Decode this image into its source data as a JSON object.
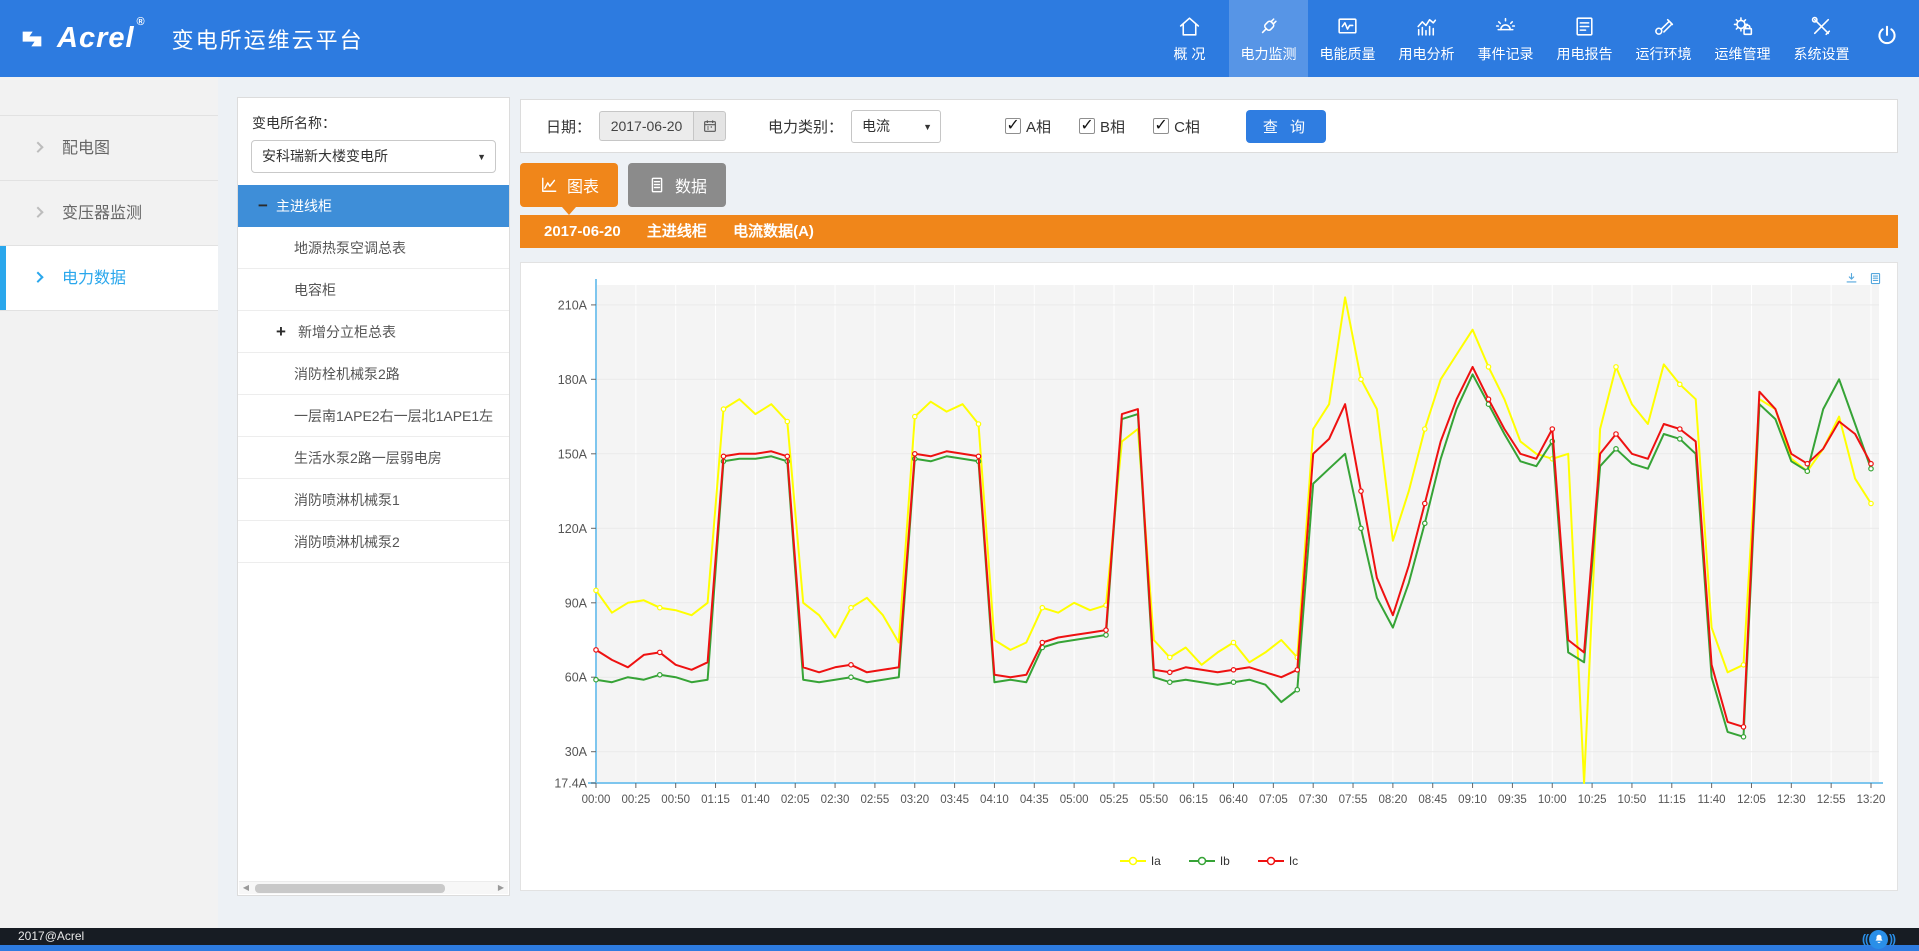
{
  "header": {
    "brand": "Acrel",
    "brand_reg": "®",
    "title": "变电所运维云平台",
    "nav": [
      {
        "label": "概 况",
        "icon": "home-icon",
        "active": false
      },
      {
        "label": "电力监测",
        "icon": "plug-icon",
        "active": true
      },
      {
        "label": "电能质量",
        "icon": "pulse-monitor-icon",
        "active": false
      },
      {
        "label": "用电分析",
        "icon": "trend-bars-icon",
        "active": false
      },
      {
        "label": "事件记录",
        "icon": "siren-icon",
        "active": false
      },
      {
        "label": "用电报告",
        "icon": "report-icon",
        "active": false
      },
      {
        "label": "运行环境",
        "icon": "telescope-icon",
        "active": false
      },
      {
        "label": "运维管理",
        "icon": "gear-lock-icon",
        "active": false
      },
      {
        "label": "系统设置",
        "icon": "tools-icon",
        "active": false
      }
    ]
  },
  "sidebar": {
    "items": [
      {
        "label": "配电图",
        "active": false
      },
      {
        "label": "变压器监测",
        "active": false
      },
      {
        "label": "电力数据",
        "active": true
      }
    ]
  },
  "tree": {
    "station_label": "变电所名称：",
    "station_value": "安科瑞新大楼变电所",
    "nodes": [
      {
        "label": "主进线柜",
        "toggle": "minus",
        "selected": true
      },
      {
        "label": "地源热泵空调总表",
        "toggle": "none",
        "selected": false
      },
      {
        "label": "电容柜",
        "toggle": "none",
        "selected": false
      },
      {
        "label": "新增分立柜总表",
        "toggle": "plus",
        "selected": false
      },
      {
        "label": "消防栓机械泵2路",
        "toggle": "none",
        "selected": false
      },
      {
        "label": "一层南1APE2右一层北1APE1左",
        "toggle": "none",
        "selected": false
      },
      {
        "label": "生活水泵2路一层弱电房",
        "toggle": "none",
        "selected": false
      },
      {
        "label": "消防喷淋机械泵1",
        "toggle": "none",
        "selected": false
      },
      {
        "label": "消防喷淋机械泵2",
        "toggle": "none",
        "selected": false
      }
    ]
  },
  "toolbar": {
    "date_label": "日期：",
    "date_value": "2017-06-20",
    "type_label": "电力类别：",
    "type_value": "电流",
    "phases": [
      {
        "label": "A相",
        "checked": true
      },
      {
        "label": "B相",
        "checked": true
      },
      {
        "label": "C相",
        "checked": true
      }
    ],
    "query_label": "查 询"
  },
  "tabs": [
    {
      "label": "图表",
      "icon": "chart-icon",
      "active": true
    },
    {
      "label": "数据",
      "icon": "data-icon",
      "active": false
    }
  ],
  "banner": {
    "date": "2017-06-20",
    "device": "主进线柜",
    "metric": "电流数据(A)"
  },
  "chart_data": {
    "type": "line",
    "title": "2017-06-20 主进线柜 电流数据(A)",
    "unit": "A",
    "x_start": "00:00",
    "x_step_min": 10,
    "xticks": [
      "00:00",
      "00:25",
      "00:50",
      "01:15",
      "01:40",
      "02:05",
      "02:30",
      "02:55",
      "03:20",
      "03:45",
      "04:10",
      "04:35",
      "05:00",
      "05:25",
      "05:50",
      "06:15",
      "06:40",
      "07:05",
      "07:30",
      "07:55",
      "08:20",
      "08:45",
      "09:10",
      "09:35",
      "10:00",
      "10:25",
      "10:50",
      "11:15",
      "11:40",
      "12:05",
      "12:30",
      "12:55",
      "13:20"
    ],
    "yticks": [
      17.4,
      30,
      60,
      90,
      120,
      150,
      180,
      210
    ],
    "ytick_labels": [
      "17.4A",
      "30A",
      "60A",
      "90A",
      "120A",
      "150A",
      "180A",
      "210A"
    ],
    "ylim": [
      17.4,
      218
    ],
    "grid": true,
    "legend_position": "bottom",
    "series": [
      {
        "name": "Ia",
        "color": "#ffff00",
        "values": [
          95,
          86,
          90,
          91,
          88,
          87,
          85,
          90,
          168,
          172,
          166,
          170,
          163,
          90,
          85,
          76,
          88,
          92,
          85,
          74,
          165,
          171,
          167,
          170,
          162,
          75,
          71,
          74,
          88,
          86,
          90,
          87,
          89,
          155,
          160,
          75,
          68,
          72,
          65,
          70,
          74,
          66,
          70,
          75,
          68,
          160,
          170,
          213,
          180,
          168,
          115,
          135,
          160,
          180,
          190,
          200,
          185,
          172,
          155,
          150,
          148,
          150,
          17.4,
          160,
          185,
          170,
          162,
          186,
          178,
          172,
          80,
          62,
          65,
          172,
          168,
          148,
          143,
          152,
          165,
          140,
          130
        ]
      },
      {
        "name": "Ib",
        "color": "#36a336",
        "values": [
          59,
          58,
          60,
          59,
          61,
          60,
          58,
          59,
          147,
          148,
          148,
          149,
          147,
          59,
          58,
          59,
          60,
          58,
          59,
          60,
          148,
          147,
          149,
          148,
          147,
          58,
          59,
          58,
          72,
          74,
          75,
          76,
          77,
          164,
          166,
          60,
          58,
          59,
          58,
          57,
          58,
          59,
          57,
          50,
          55,
          138,
          144,
          150,
          120,
          92,
          80,
          98,
          122,
          148,
          168,
          182,
          170,
          158,
          147,
          145,
          155,
          70,
          66,
          145,
          152,
          146,
          144,
          158,
          156,
          150,
          60,
          38,
          36,
          170,
          164,
          147,
          143,
          168,
          180,
          162,
          144
        ]
      },
      {
        "name": "Ic",
        "color": "#ee1111",
        "values": [
          71,
          67,
          64,
          69,
          70,
          65,
          63,
          66,
          149,
          150,
          150,
          151,
          149,
          64,
          62,
          64,
          65,
          62,
          63,
          64,
          150,
          149,
          151,
          150,
          149,
          61,
          60,
          61,
          74,
          76,
          77,
          78,
          79,
          166,
          168,
          63,
          62,
          64,
          63,
          62,
          63,
          64,
          62,
          60,
          63,
          150,
          156,
          170,
          135,
          100,
          85,
          105,
          130,
          155,
          172,
          185,
          172,
          160,
          150,
          148,
          160,
          75,
          70,
          150,
          158,
          150,
          148,
          162,
          160,
          155,
          65,
          42,
          40,
          175,
          168,
          150,
          146,
          152,
          163,
          158,
          146
        ]
      }
    ]
  },
  "footer": {
    "copyright": "2017@Acrel"
  },
  "colors": {
    "header_blue": "#2d7be0",
    "accent_blue": "#2aa7ec",
    "tree_selected_blue": "#3e8ed8",
    "orange": "#f0861a",
    "tab_gray": "#8b8b8b",
    "query_blue": "#2f7de1",
    "axis_blue": "#7ec6ee",
    "plot_bg": "#f4f4f4",
    "series_ia": "#ffff00",
    "series_ib": "#36a336",
    "series_ic": "#ee1111"
  }
}
